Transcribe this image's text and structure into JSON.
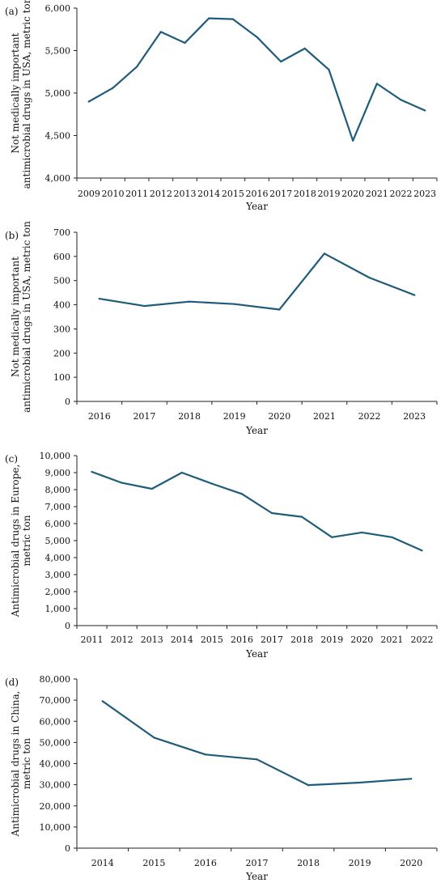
{
  "style": {
    "line_color": "#1f5c7a",
    "axis_color": "#222222",
    "background": "#ffffff"
  },
  "chart_data": [
    {
      "panel_label": "(a)",
      "type": "line",
      "xlabel": "Year",
      "ylabel_lines": [
        "Not medically important",
        "antimicrobial drugs in USA, metric ton"
      ],
      "x": [
        "2009",
        "2010",
        "2011",
        "2012",
        "2013",
        "2014",
        "2015",
        "2016",
        "2017",
        "2018",
        "2019",
        "2020",
        "2021",
        "2022",
        "2023"
      ],
      "values": [
        4900,
        5060,
        5310,
        5720,
        5590,
        5880,
        5870,
        5660,
        5370,
        5525,
        5275,
        4440,
        5110,
        4920,
        4795
      ],
      "ylim": [
        4000,
        6000
      ],
      "yticks": [
        4000,
        4500,
        5000,
        5500,
        6000
      ],
      "ytick_labels": [
        "4,000",
        "4,500",
        "5,000",
        "5,500",
        "6,000"
      ],
      "grid": false
    },
    {
      "panel_label": "(b)",
      "type": "line",
      "xlabel": "Year",
      "ylabel_lines": [
        "Not medically important",
        "antimicrobial drugs in USA, metric ton"
      ],
      "x": [
        "2016",
        "2017",
        "2018",
        "2019",
        "2020",
        "2021",
        "2022",
        "2023"
      ],
      "values": [
        425,
        395,
        413,
        403,
        380,
        612,
        512,
        440
      ],
      "ylim": [
        0,
        700
      ],
      "yticks": [
        0,
        100,
        200,
        300,
        400,
        500,
        600,
        700
      ],
      "ytick_labels": [
        "0",
        "100",
        "200",
        "300",
        "400",
        "500",
        "600",
        "700"
      ],
      "grid": false
    },
    {
      "panel_label": "(c)",
      "type": "line",
      "xlabel": "Year",
      "ylabel_lines": [
        "Antimicrobial drugs in Europe,",
        "metric ton"
      ],
      "x": [
        "2011",
        "2012",
        "2013",
        "2014",
        "2015",
        "2016",
        "2017",
        "2018",
        "2019",
        "2020",
        "2021",
        "2022"
      ],
      "values": [
        9050,
        8400,
        8050,
        9000,
        8350,
        7750,
        6620,
        6400,
        5200,
        5480,
        5200,
        4420
      ],
      "ylim": [
        0,
        10000
      ],
      "yticks": [
        0,
        1000,
        2000,
        3000,
        4000,
        5000,
        6000,
        7000,
        8000,
        9000,
        10000
      ],
      "ytick_labels": [
        "0",
        "1,000",
        "2,000",
        "3,000",
        "4,000",
        "5,000",
        "6,000",
        "7,000",
        "8,000",
        "9,000",
        "10,000"
      ],
      "grid": false
    },
    {
      "panel_label": "(d)",
      "type": "line",
      "xlabel": "Year",
      "ylabel_lines": [
        "Antimicrobial drugs in China,",
        "metric ton"
      ],
      "x": [
        "2014",
        "2015",
        "2016",
        "2017",
        "2018",
        "2019",
        "2020"
      ],
      "values": [
        69500,
        52300,
        44300,
        42000,
        29800,
        31000,
        32800
      ],
      "ylim": [
        0,
        80000
      ],
      "yticks": [
        0,
        10000,
        20000,
        30000,
        40000,
        50000,
        60000,
        70000,
        80000
      ],
      "ytick_labels": [
        "0",
        "10,000",
        "20,000",
        "30,000",
        "40,000",
        "50,000",
        "60,000",
        "70,000",
        "80,000"
      ],
      "grid": false
    }
  ]
}
